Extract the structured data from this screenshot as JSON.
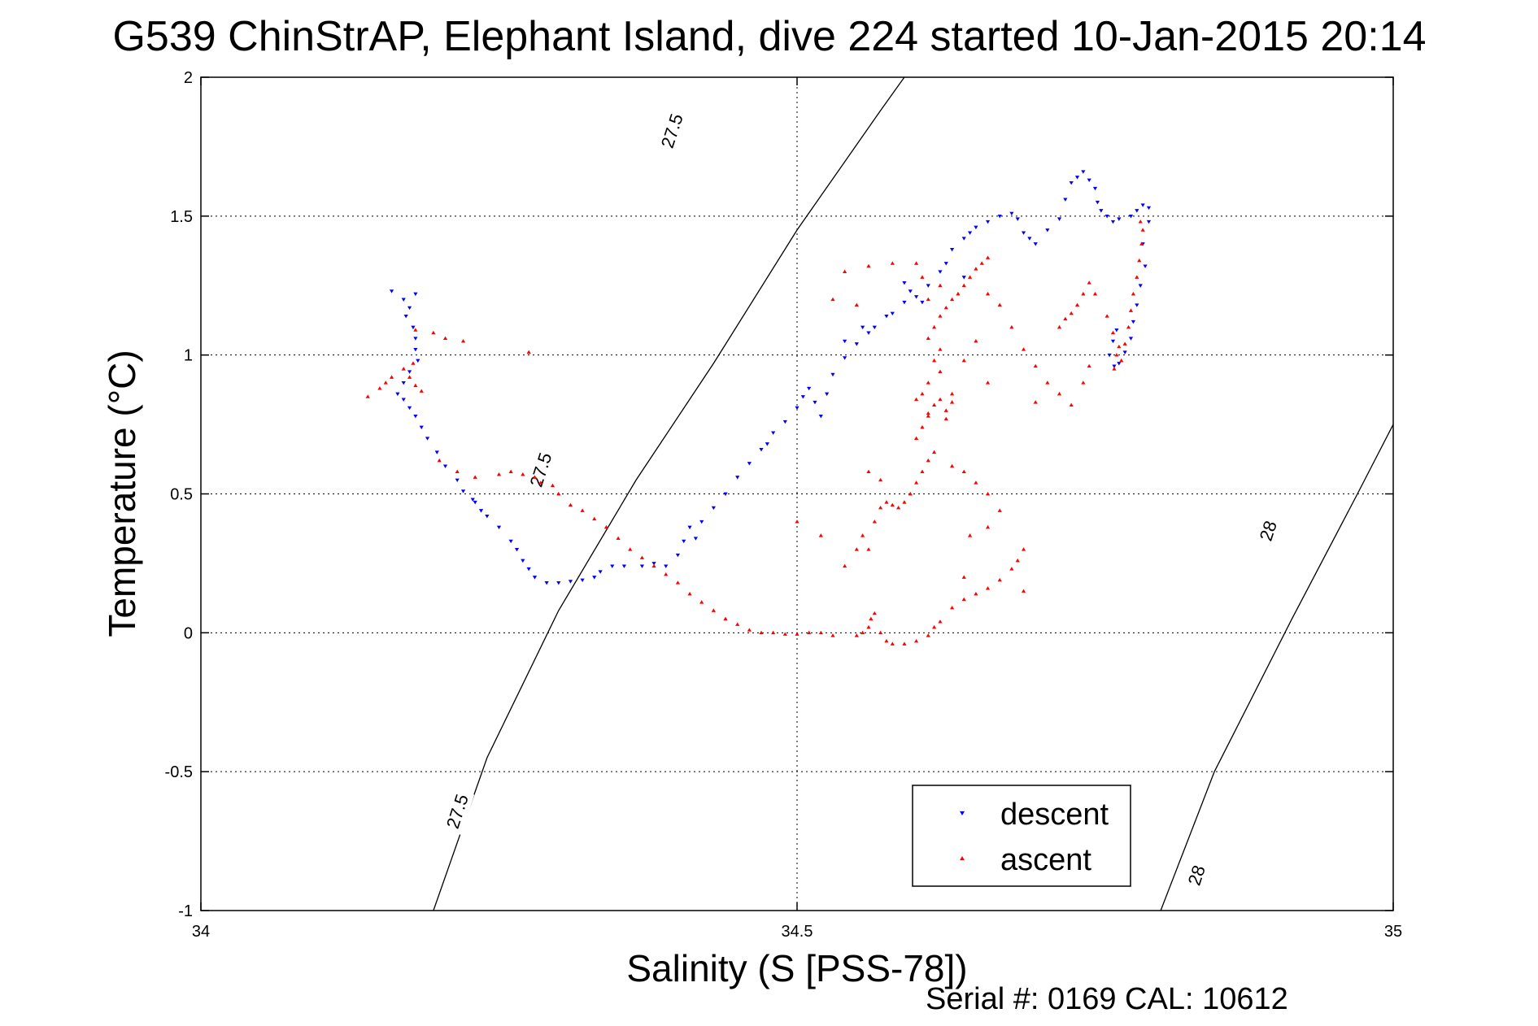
{
  "chart_data": {
    "type": "scatter",
    "title": "G539 ChinStrAP, Elephant Island, dive 224 started 10-Jan-2015 20:14",
    "xlabel": "Salinity (S [PSS-78])",
    "ylabel": "Temperature (°C)",
    "xlim": [
      34,
      35
    ],
    "ylim": [
      -1,
      2
    ],
    "x_ticks": [
      "34",
      "34.5",
      "35"
    ],
    "y_ticks": [
      "2",
      "1.5",
      "1",
      "0.5",
      "0",
      "-0.5",
      "-1"
    ],
    "grid": true,
    "legend_position": "bottom-right",
    "footer": "Serial #: 0169 CAL: 10612",
    "contours": [
      {
        "label": "27.5",
        "points": [
          [
            34.195,
            -1.0
          ],
          [
            34.24,
            -0.45
          ],
          [
            34.3,
            0.08
          ],
          [
            34.365,
            0.55
          ],
          [
            34.43,
            0.97
          ],
          [
            34.5,
            1.45
          ],
          [
            34.57,
            1.88
          ],
          [
            34.59,
            2.0
          ]
        ]
      },
      {
        "label": "28",
        "points": [
          [
            34.805,
            -1.0
          ],
          [
            34.85,
            -0.5
          ],
          [
            34.915,
            0.05
          ],
          [
            34.97,
            0.5
          ],
          [
            35.0,
            0.75
          ]
        ]
      }
    ],
    "contour_labels": [
      {
        "text": "27.5",
        "x": 34.4,
        "y": 1.8
      },
      {
        "text": "27.5",
        "x": 34.29,
        "y": 0.58
      },
      {
        "text": "27.5",
        "x": 34.22,
        "y": -0.65
      },
      {
        "text": "28",
        "x": 34.9,
        "y": 0.36
      },
      {
        "text": "28",
        "x": 34.84,
        "y": -0.88
      }
    ],
    "series": [
      {
        "name": "descent",
        "color": "#0000ff",
        "marker": "triangle-down",
        "points": [
          [
            34.16,
            1.23
          ],
          [
            34.17,
            1.2
          ],
          [
            34.175,
            1.17
          ],
          [
            34.18,
            1.22
          ],
          [
            34.172,
            1.14
          ],
          [
            34.178,
            1.1
          ],
          [
            34.18,
            1.06
          ],
          [
            34.18,
            1.02
          ],
          [
            34.182,
            0.98
          ],
          [
            34.175,
            0.94
          ],
          [
            34.17,
            0.9
          ],
          [
            34.165,
            0.86
          ],
          [
            34.17,
            0.84
          ],
          [
            34.175,
            0.81
          ],
          [
            34.18,
            0.78
          ],
          [
            34.185,
            0.74
          ],
          [
            34.19,
            0.7
          ],
          [
            34.198,
            0.65
          ],
          [
            34.205,
            0.6
          ],
          [
            34.215,
            0.55
          ],
          [
            34.22,
            0.51
          ],
          [
            34.23,
            0.47
          ],
          [
            34.235,
            0.44
          ],
          [
            34.228,
            0.48
          ],
          [
            34.24,
            0.42
          ],
          [
            34.25,
            0.38
          ],
          [
            34.26,
            0.33
          ],
          [
            34.265,
            0.3
          ],
          [
            34.27,
            0.26
          ],
          [
            34.275,
            0.23
          ],
          [
            34.28,
            0.2
          ],
          [
            34.29,
            0.18
          ],
          [
            34.3,
            0.18
          ],
          [
            34.31,
            0.185
          ],
          [
            34.32,
            0.19
          ],
          [
            34.33,
            0.2
          ],
          [
            34.335,
            0.22
          ],
          [
            34.345,
            0.24
          ],
          [
            34.355,
            0.24
          ],
          [
            34.37,
            0.24
          ],
          [
            34.38,
            0.25
          ],
          [
            34.39,
            0.24
          ],
          [
            34.4,
            0.28
          ],
          [
            34.405,
            0.33
          ],
          [
            34.41,
            0.38
          ],
          [
            34.415,
            0.34
          ],
          [
            34.42,
            0.4
          ],
          [
            34.43,
            0.45
          ],
          [
            34.44,
            0.5
          ],
          [
            34.45,
            0.56
          ],
          [
            34.46,
            0.61
          ],
          [
            34.47,
            0.66
          ],
          [
            34.475,
            0.68
          ],
          [
            34.48,
            0.72
          ],
          [
            34.49,
            0.76
          ],
          [
            34.5,
            0.81
          ],
          [
            34.505,
            0.85
          ],
          [
            34.51,
            0.88
          ],
          [
            34.515,
            0.83
          ],
          [
            34.52,
            0.78
          ],
          [
            34.525,
            0.86
          ],
          [
            34.53,
            0.93
          ],
          [
            34.54,
            0.99
          ],
          [
            34.55,
            1.04
          ],
          [
            34.56,
            1.08
          ],
          [
            34.565,
            1.1
          ],
          [
            34.575,
            1.14
          ],
          [
            34.58,
            1.15
          ],
          [
            34.59,
            1.19
          ],
          [
            34.595,
            1.23
          ],
          [
            34.6,
            1.21
          ],
          [
            34.605,
            1.19
          ],
          [
            34.61,
            1.25
          ],
          [
            34.62,
            1.3
          ],
          [
            34.625,
            1.33
          ],
          [
            34.63,
            1.38
          ],
          [
            34.64,
            1.42
          ],
          [
            34.645,
            1.44
          ],
          [
            34.65,
            1.46
          ],
          [
            34.66,
            1.48
          ],
          [
            34.67,
            1.5
          ],
          [
            34.68,
            1.51
          ],
          [
            34.685,
            1.49
          ],
          [
            34.69,
            1.44
          ],
          [
            34.695,
            1.42
          ],
          [
            34.7,
            1.4
          ],
          [
            34.71,
            1.45
          ],
          [
            34.72,
            1.49
          ],
          [
            34.725,
            1.56
          ],
          [
            34.73,
            1.62
          ],
          [
            34.735,
            1.64
          ],
          [
            34.74,
            1.66
          ],
          [
            34.745,
            1.63
          ],
          [
            34.75,
            1.6
          ],
          [
            34.752,
            1.55
          ],
          [
            34.755,
            1.52
          ],
          [
            34.76,
            1.5
          ],
          [
            34.765,
            1.48
          ],
          [
            34.77,
            1.49
          ],
          [
            34.78,
            1.5
          ],
          [
            34.785,
            1.52
          ],
          [
            34.79,
            1.54
          ],
          [
            34.795,
            1.53
          ],
          [
            34.795,
            1.48
          ],
          [
            34.79,
            1.4
          ],
          [
            34.792,
            1.32
          ],
          [
            34.788,
            1.25
          ],
          [
            34.785,
            1.18
          ],
          [
            34.782,
            1.12
          ],
          [
            34.78,
            1.06
          ],
          [
            34.775,
            1.01
          ],
          [
            34.77,
            0.97
          ],
          [
            34.766,
            0.96
          ],
          [
            34.762,
            1.0
          ],
          [
            34.765,
            1.05
          ],
          [
            34.768,
            1.09
          ],
          [
            34.64,
            1.28
          ],
          [
            34.59,
            1.26
          ],
          [
            34.555,
            1.1
          ],
          [
            34.54,
            1.05
          ]
        ]
      },
      {
        "name": "ascent",
        "color": "#ff0000",
        "marker": "triangle-up",
        "points": [
          [
            34.14,
            0.85
          ],
          [
            34.15,
            0.88
          ],
          [
            34.155,
            0.9
          ],
          [
            34.16,
            0.92
          ],
          [
            34.17,
            0.95
          ],
          [
            34.175,
            0.92
          ],
          [
            34.18,
            0.89
          ],
          [
            34.185,
            0.87
          ],
          [
            34.178,
            0.97
          ],
          [
            34.18,
            1.09
          ],
          [
            34.195,
            1.08
          ],
          [
            34.205,
            1.06
          ],
          [
            34.22,
            1.05
          ],
          [
            34.275,
            1.01
          ],
          [
            34.2,
            0.62
          ],
          [
            34.215,
            0.58
          ],
          [
            34.23,
            0.56
          ],
          [
            34.25,
            0.57
          ],
          [
            34.26,
            0.58
          ],
          [
            34.27,
            0.57
          ],
          [
            34.28,
            0.56
          ],
          [
            34.285,
            0.54
          ],
          [
            34.295,
            0.53
          ],
          [
            34.3,
            0.5
          ],
          [
            34.31,
            0.46
          ],
          [
            34.32,
            0.44
          ],
          [
            34.33,
            0.41
          ],
          [
            34.34,
            0.38
          ],
          [
            34.35,
            0.34
          ],
          [
            34.36,
            0.3
          ],
          [
            34.37,
            0.27
          ],
          [
            34.38,
            0.24
          ],
          [
            34.39,
            0.21
          ],
          [
            34.4,
            0.18
          ],
          [
            34.41,
            0.14
          ],
          [
            34.42,
            0.11
          ],
          [
            34.43,
            0.08
          ],
          [
            34.44,
            0.05
          ],
          [
            34.45,
            0.03
          ],
          [
            34.46,
            0.01
          ],
          [
            34.47,
            0.0
          ],
          [
            34.48,
            0.0
          ],
          [
            34.49,
            -0.005
          ],
          [
            34.5,
            -0.005
          ],
          [
            34.51,
            0.0
          ],
          [
            34.52,
            0.0
          ],
          [
            34.53,
            -0.01
          ],
          [
            34.55,
            -0.01
          ],
          [
            34.555,
            0.0
          ],
          [
            34.56,
            0.02
          ],
          [
            34.562,
            0.05
          ],
          [
            34.565,
            0.07
          ],
          [
            34.57,
            0.0
          ],
          [
            34.575,
            -0.03
          ],
          [
            34.58,
            -0.04
          ],
          [
            34.59,
            -0.04
          ],
          [
            34.6,
            -0.03
          ],
          [
            34.61,
            -0.01
          ],
          [
            34.615,
            0.02
          ],
          [
            34.62,
            0.04
          ],
          [
            34.63,
            0.09
          ],
          [
            34.64,
            0.12
          ],
          [
            34.65,
            0.14
          ],
          [
            34.66,
            0.16
          ],
          [
            34.67,
            0.19
          ],
          [
            34.68,
            0.23
          ],
          [
            34.685,
            0.26
          ],
          [
            34.69,
            0.3
          ],
          [
            34.55,
            0.3
          ],
          [
            34.555,
            0.35
          ],
          [
            34.565,
            0.4
          ],
          [
            34.57,
            0.45
          ],
          [
            34.575,
            0.47
          ],
          [
            34.58,
            0.46
          ],
          [
            34.585,
            0.45
          ],
          [
            34.59,
            0.47
          ],
          [
            34.595,
            0.5
          ],
          [
            34.6,
            0.54
          ],
          [
            34.605,
            0.58
          ],
          [
            34.61,
            0.62
          ],
          [
            34.615,
            0.65
          ],
          [
            34.6,
            0.7
          ],
          [
            34.605,
            0.74
          ],
          [
            34.61,
            0.78
          ],
          [
            34.615,
            0.82
          ],
          [
            34.62,
            0.84
          ],
          [
            34.625,
            0.8
          ],
          [
            34.63,
            0.86
          ],
          [
            34.61,
            0.9
          ],
          [
            34.62,
            0.94
          ],
          [
            34.615,
            0.98
          ],
          [
            34.62,
            1.02
          ],
          [
            34.61,
            1.06
          ],
          [
            34.615,
            1.1
          ],
          [
            34.62,
            1.14
          ],
          [
            34.625,
            1.17
          ],
          [
            34.63,
            1.2
          ],
          [
            34.635,
            1.22
          ],
          [
            34.64,
            1.25
          ],
          [
            34.645,
            1.28
          ],
          [
            34.65,
            1.31
          ],
          [
            34.655,
            1.33
          ],
          [
            34.66,
            1.35
          ],
          [
            34.62,
            1.25
          ],
          [
            34.61,
            1.2
          ],
          [
            34.605,
            1.28
          ],
          [
            34.6,
            1.33
          ],
          [
            34.58,
            1.33
          ],
          [
            34.56,
            1.32
          ],
          [
            34.54,
            1.3
          ],
          [
            34.53,
            1.2
          ],
          [
            34.55,
            1.18
          ],
          [
            34.66,
            1.22
          ],
          [
            34.67,
            1.18
          ],
          [
            34.68,
            1.1
          ],
          [
            34.69,
            1.02
          ],
          [
            34.7,
            0.96
          ],
          [
            34.71,
            0.9
          ],
          [
            34.72,
            0.86
          ],
          [
            34.73,
            0.82
          ],
          [
            34.74,
            0.9
          ],
          [
            34.745,
            0.96
          ],
          [
            34.72,
            1.1
          ],
          [
            34.725,
            1.13
          ],
          [
            34.73,
            1.15
          ],
          [
            34.735,
            1.18
          ],
          [
            34.74,
            1.22
          ],
          [
            34.745,
            1.26
          ],
          [
            34.75,
            1.22
          ],
          [
            34.76,
            1.14
          ],
          [
            34.765,
            1.08
          ],
          [
            34.77,
            1.03
          ],
          [
            34.772,
            0.98
          ],
          [
            34.775,
            1.04
          ],
          [
            34.778,
            1.1
          ],
          [
            34.78,
            1.16
          ],
          [
            34.782,
            1.22
          ],
          [
            34.785,
            1.28
          ],
          [
            34.787,
            1.34
          ],
          [
            34.789,
            1.4
          ],
          [
            34.79,
            1.45
          ],
          [
            34.788,
            1.48
          ],
          [
            34.766,
            0.95
          ],
          [
            34.768,
            1.0
          ],
          [
            34.64,
            0.58
          ],
          [
            34.65,
            0.54
          ],
          [
            34.66,
            0.5
          ],
          [
            34.67,
            0.44
          ],
          [
            34.66,
            0.38
          ],
          [
            34.645,
            0.35
          ],
          [
            34.63,
            0.6
          ],
          [
            34.56,
            0.3
          ],
          [
            34.54,
            0.24
          ],
          [
            34.52,
            0.35
          ],
          [
            34.5,
            0.4
          ],
          [
            34.69,
            0.15
          ],
          [
            34.64,
            0.2
          ],
          [
            34.7,
            0.83
          ],
          [
            34.66,
            0.9
          ],
          [
            34.65,
            1.05
          ],
          [
            34.64,
            0.98
          ],
          [
            34.56,
            0.58
          ],
          [
            34.57,
            0.55
          ],
          [
            34.6,
            0.84
          ],
          [
            34.605,
            0.86
          ],
          [
            34.61,
            0.79
          ],
          [
            34.625,
            0.77
          ],
          [
            34.63,
            0.83
          ]
        ]
      }
    ]
  }
}
